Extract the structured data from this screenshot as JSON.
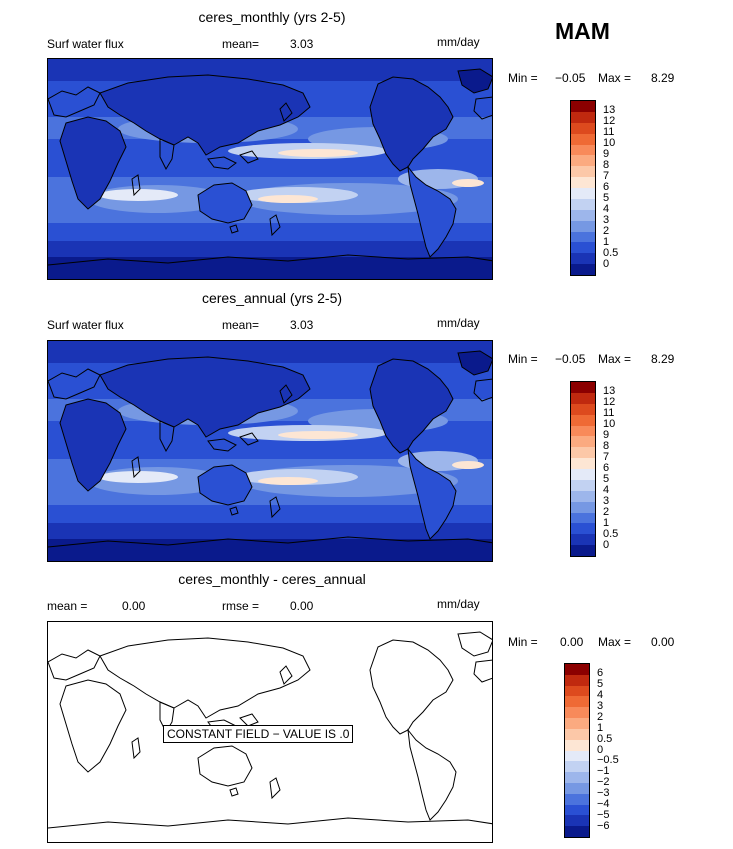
{
  "season": "MAM",
  "panels": [
    {
      "title": "ceres_monthly (yrs 2-5)",
      "left_label": "Surf water flux",
      "mid_label": "mean=",
      "mid_value": "3.03",
      "units": "mm/day",
      "min_label": "Min =",
      "min_value": "−0.05",
      "max_label": "Max =",
      "max_value": "8.29"
    },
    {
      "title": "ceres_annual (yrs 2-5)",
      "left_label": "Surf water flux",
      "mid_label": "mean=",
      "mid_value": "3.03",
      "units": "mm/day",
      "min_label": "Min =",
      "min_value": "−0.05",
      "max_label": "Max =",
      "max_value": "8.29"
    },
    {
      "title": "ceres_monthly - ceres_annual",
      "left_label": "mean =",
      "left_value": "0.00",
      "mid_label": "rmse =",
      "mid_value": "0.00",
      "units": "mm/day",
      "min_label": "Min =",
      "min_value": "0.00",
      "max_label": "Max =",
      "max_value": "0.00",
      "constant_label": "CONSTANT FIELD − VALUE IS .0"
    }
  ],
  "colorbar_flux": {
    "labels": [
      "13",
      "12",
      "11",
      "10",
      "9",
      "8",
      "7",
      "6",
      "5",
      "4",
      "3",
      "2",
      "1",
      "0.5",
      "0"
    ],
    "colors": [
      "#8b0000",
      "#c0290f",
      "#dd4a1e",
      "#ef6a35",
      "#f88a5a",
      "#fbaa80",
      "#fcc8a8",
      "#fde6d4",
      "#e4eaf8",
      "#c2d2f2",
      "#9db6eb",
      "#7698e3",
      "#4b73dd",
      "#2a50d3",
      "#1a34b5",
      "#0a1a8c"
    ]
  },
  "colorbar_diff": {
    "labels": [
      "6",
      "5",
      "4",
      "3",
      "2",
      "1",
      "0.5",
      "0",
      "−0.5",
      "−1",
      "−2",
      "−3",
      "−4",
      "−5",
      "−6"
    ],
    "colors": [
      "#8b0000",
      "#c0290f",
      "#dd4a1e",
      "#ef6a35",
      "#f88a5a",
      "#fbaa80",
      "#fcc8a8",
      "#fde6d4",
      "#e4eaf8",
      "#c2d2f2",
      "#9db6eb",
      "#7698e3",
      "#4b73dd",
      "#2a50d3",
      "#1a34b5",
      "#0a1a8c"
    ]
  }
}
